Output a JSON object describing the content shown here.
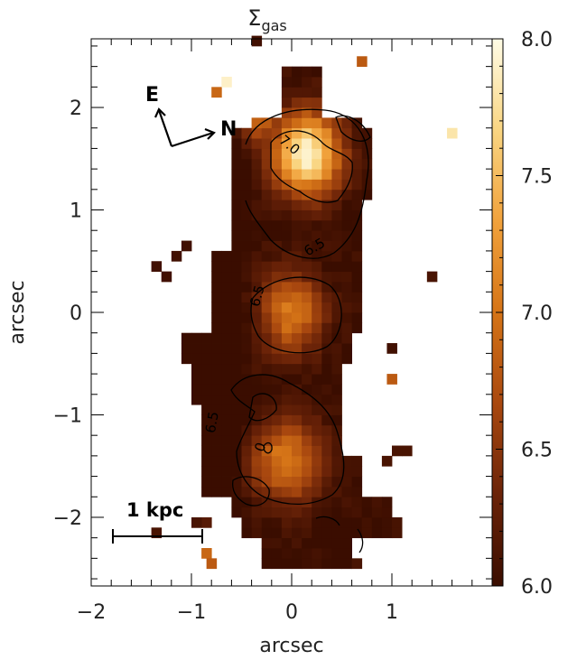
{
  "chart_data": {
    "type": "heatmap",
    "title": "Σ",
    "title_subscript": "gas",
    "xlabel": "arcsec",
    "ylabel": "arcsec",
    "xlim": [
      -2.0,
      2.0
    ],
    "ylim": [
      -2.67,
      2.67
    ],
    "x_ticks": [
      -2,
      -1,
      0,
      1
    ],
    "x_tick_labels": [
      "−2",
      "−1",
      "0",
      "1"
    ],
    "y_ticks": [
      -2,
      -1,
      0,
      1,
      2
    ],
    "y_tick_labels": [
      "−2",
      "−1",
      "0",
      "1",
      "2"
    ],
    "colorbar": {
      "range": [
        6.0,
        8.0
      ],
      "ticks": [
        6.0,
        6.5,
        7.0,
        7.5,
        8.0
      ],
      "tick_labels": [
        "6.0",
        "6.5",
        "7.0",
        "7.5",
        "8.0"
      ],
      "colormap": [
        "#3a0d00",
        "#6b2308",
        "#a9480f",
        "#d57417",
        "#f1a23c",
        "#f9d582",
        "#fffce6"
      ]
    },
    "pixel_size_arcsec": 0.1,
    "blobs": [
      {
        "x": 0.15,
        "y": 1.55,
        "peak": 7.95,
        "sx": 0.32,
        "sy": 0.38
      },
      {
        "x": 0.0,
        "y": 0.0,
        "peak": 7.05,
        "sx": 0.3,
        "sy": 0.38
      },
      {
        "x": -0.05,
        "y": -1.45,
        "peak": 7.05,
        "sx": 0.35,
        "sy": 0.38
      },
      {
        "x": -0.3,
        "y": 1.9,
        "peak": 6.9,
        "sx": 0.22,
        "sy": 0.25
      }
    ],
    "contours": [
      {
        "level": "7.0",
        "label_x": -0.05,
        "label_y": 1.6,
        "label_angle": 40
      },
      {
        "level": "6.5",
        "label_x": 0.25,
        "label_y": 0.6,
        "label_angle": -30
      },
      {
        "level": "6.5",
        "label_x": -0.3,
        "label_y": 0.15,
        "label_angle": -75
      },
      {
        "level": "6.5",
        "label_x": -0.75,
        "label_y": -1.08,
        "label_angle": -80
      },
      {
        "level": "0",
        "label_x": -0.27,
        "label_y": -1.33,
        "label_angle": -70
      }
    ],
    "scale_bar": {
      "label": "1 kpc",
      "x0": -1.82,
      "x1": -0.92,
      "y": -2.22
    },
    "compass": {
      "e_label": "E",
      "n_label": "N"
    }
  }
}
